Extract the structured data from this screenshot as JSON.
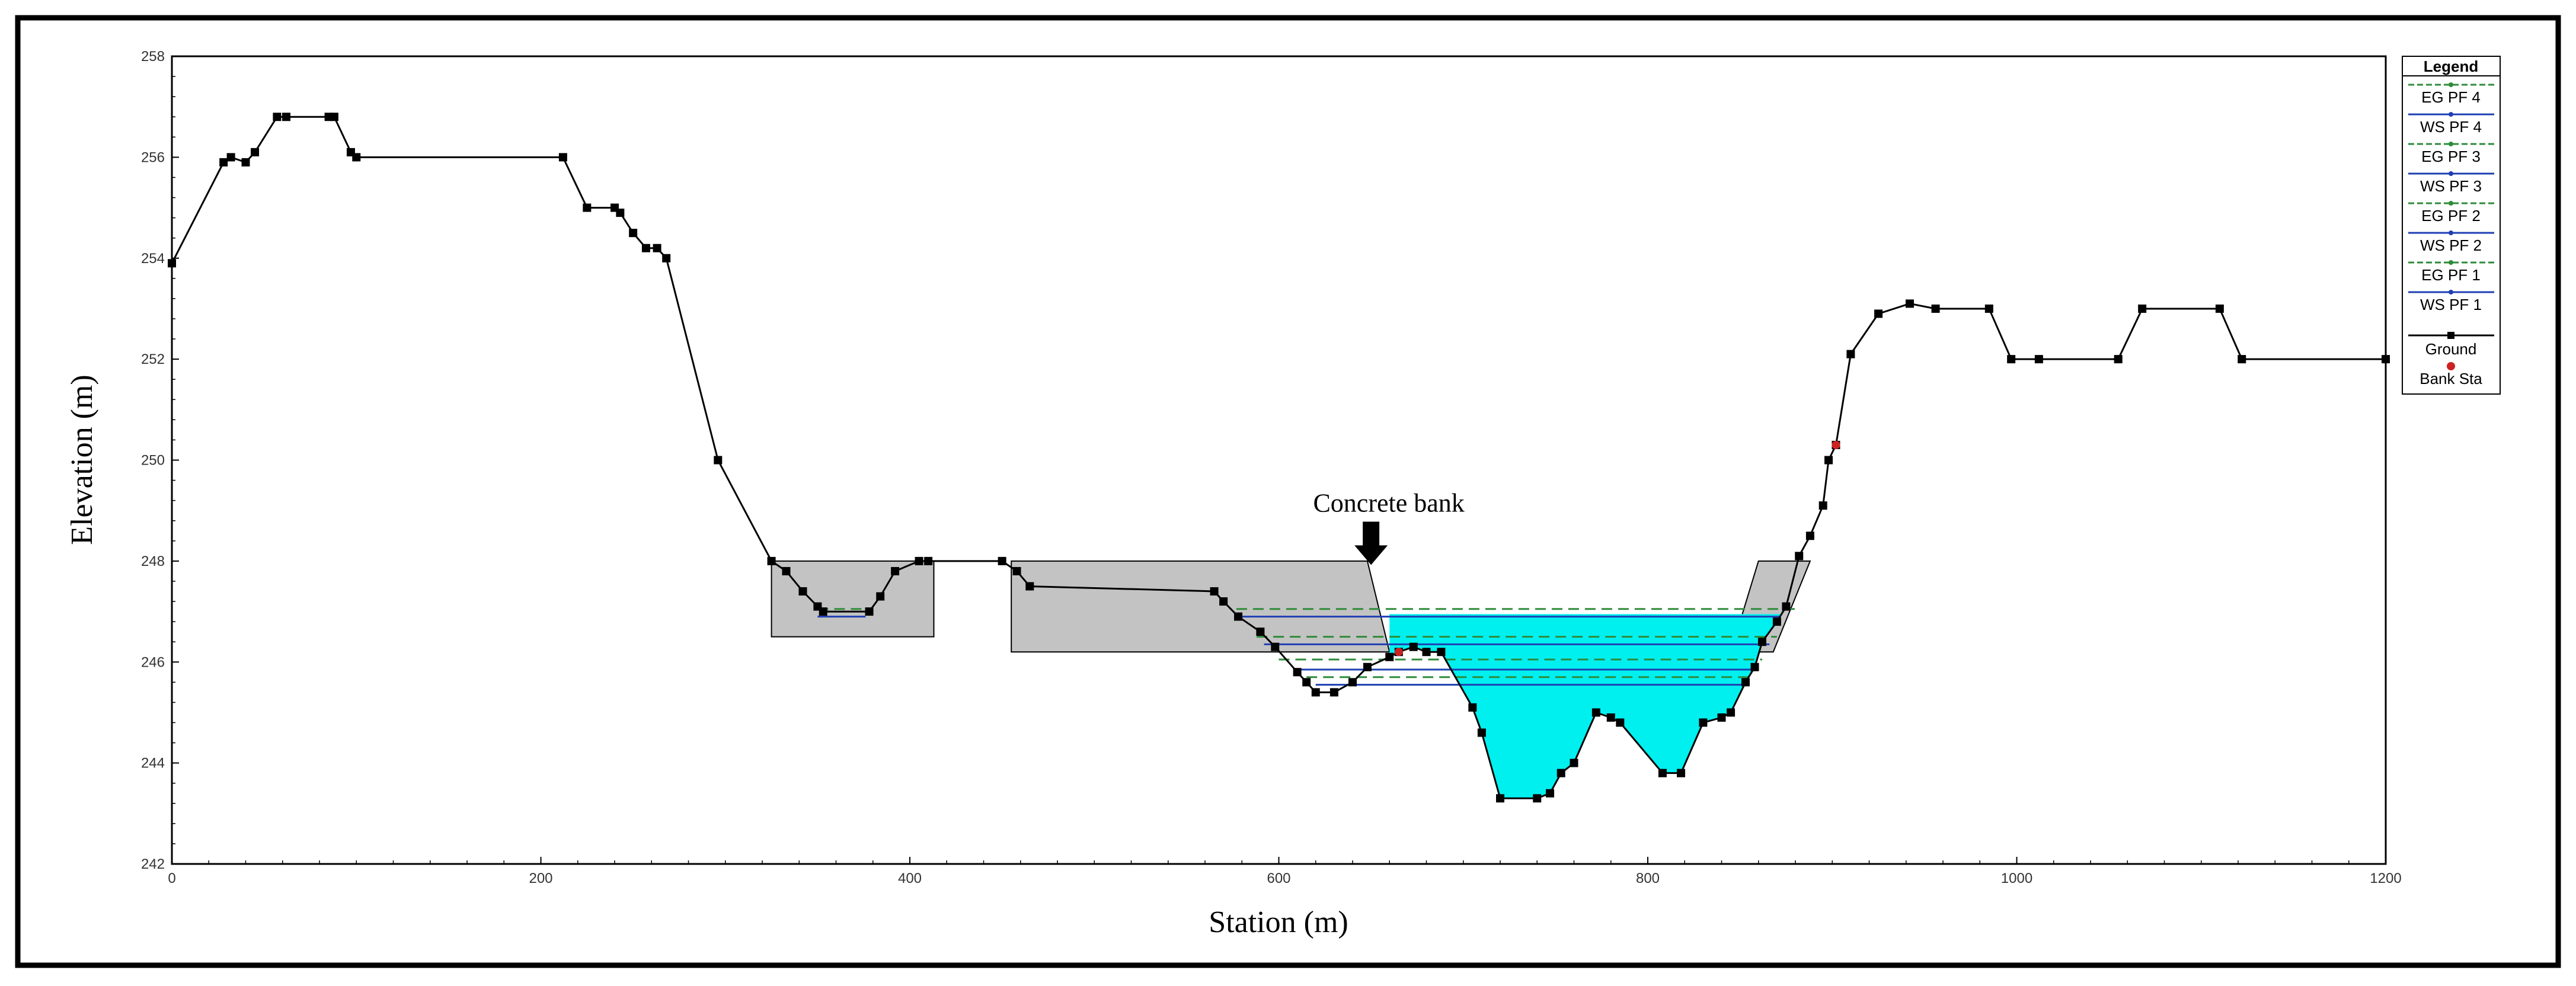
{
  "chart_data": {
    "type": "line",
    "xlabel": "Station (m)",
    "ylabel": "Elevation (m)",
    "xlim": [
      0,
      1200
    ],
    "ylim": [
      242,
      258
    ],
    "x_ticks": [
      0,
      200,
      400,
      600,
      800,
      1000,
      1200
    ],
    "y_ticks": [
      242,
      244,
      246,
      248,
      250,
      252,
      254,
      256,
      258
    ],
    "legend_title": "Legend",
    "legend_position": "right",
    "annotation": {
      "text": "Concrete bank",
      "x": 650,
      "y": 247.9
    },
    "ground": {
      "name": "Ground",
      "color": "#000000",
      "x": [
        0,
        28,
        32,
        40,
        45,
        57,
        62,
        85,
        88,
        97,
        100,
        212,
        225,
        240,
        243,
        250,
        257,
        263,
        268,
        296,
        325,
        333,
        342,
        350,
        353,
        378,
        384,
        392,
        405,
        410,
        450,
        458,
        465,
        565,
        570,
        578,
        590,
        598,
        610,
        615,
        620,
        630,
        640,
        648,
        660,
        665,
        673,
        680,
        688,
        705,
        710,
        720,
        740,
        747,
        753,
        760,
        772,
        780,
        785,
        808,
        818,
        830,
        840,
        845,
        853,
        858,
        862,
        870,
        875,
        882,
        888,
        895,
        898,
        902,
        910,
        925,
        942,
        956,
        985,
        997,
        1012,
        1055,
        1068,
        1110,
        1122,
        1200
      ],
      "y": [
        253.9,
        255.9,
        256,
        255.9,
        256.1,
        256.8,
        256.8,
        256.8,
        256.8,
        256.1,
        256,
        256,
        255,
        255,
        254.9,
        254.5,
        254.2,
        254.2,
        254,
        250,
        248,
        247.8,
        247.4,
        247.1,
        247,
        247,
        247.3,
        247.8,
        248,
        248,
        248,
        247.8,
        247.5,
        247.4,
        247.2,
        246.9,
        246.6,
        246.3,
        245.8,
        245.6,
        245.4,
        245.4,
        245.6,
        245.9,
        246.1,
        246.2,
        246.3,
        246.2,
        246.2,
        245.1,
        244.6,
        243.3,
        243.3,
        243.4,
        243.8,
        244,
        245,
        244.9,
        244.8,
        243.8,
        243.8,
        244.8,
        244.9,
        245,
        245.6,
        245.9,
        246.4,
        246.8,
        247.1,
        248.1,
        248.5,
        249.1,
        250,
        250.3,
        252.1,
        252.9,
        253.1,
        253,
        253,
        252,
        252,
        252,
        253,
        253,
        252,
        252
      ]
    },
    "ineffective_areas": [
      {
        "x": [
          325,
          413,
          413,
          325
        ],
        "y": [
          248,
          248,
          246.5,
          246.5
        ]
      },
      {
        "x": [
          455,
          648,
          660,
          455
        ],
        "y": [
          248,
          248,
          246.2,
          246.2
        ]
      },
      {
        "x": [
          860,
          888,
          868,
          845
        ],
        "y": [
          248,
          248,
          246.2,
          246.2
        ]
      }
    ],
    "series": [
      {
        "name": "EG PF 4",
        "color": "#2e8b3a",
        "dash": "18,10",
        "y": 247.05,
        "segments": [
          [
            350,
            376
          ],
          [
            577,
            880
          ]
        ]
      },
      {
        "name": "WS PF 4",
        "color": "#1f3fb3",
        "dash": "",
        "y": 246.9,
        "segments": [
          [
            350,
            376
          ],
          [
            580,
            872
          ]
        ]
      },
      {
        "name": "EG PF 3",
        "color": "#2e8b3a",
        "dash": "18,10",
        "y": 246.5,
        "segments": [
          [
            588,
            870
          ]
        ]
      },
      {
        "name": "WS PF 3",
        "color": "#1f3fb3",
        "dash": "",
        "y": 246.35,
        "segments": [
          [
            592,
            866
          ]
        ]
      },
      {
        "name": "EG PF 2",
        "color": "#2e8b3a",
        "dash": "18,10",
        "y": 246.05,
        "segments": [
          [
            600,
            862
          ]
        ]
      },
      {
        "name": "WS PF 2",
        "color": "#1f3fb3",
        "dash": "",
        "y": 245.85,
        "segments": [
          [
            610,
            858
          ]
        ]
      },
      {
        "name": "EG PF 1",
        "color": "#2e8b3a",
        "dash": "18,10",
        "y": 245.7,
        "segments": [
          [
            615,
            856
          ]
        ]
      },
      {
        "name": "WS PF 1",
        "color": "#1f3fb3",
        "dash": "",
        "y": 245.55,
        "segments": [
          [
            620,
            854
          ]
        ]
      }
    ],
    "water_fill": {
      "color": "#00f0f0",
      "y": 246.95,
      "x_start": 660,
      "x_end": 872
    },
    "bank_sta": {
      "name": "Bank Sta",
      "color": "#cc2222",
      "points": [
        {
          "x": 665,
          "y": 246.2
        },
        {
          "x": 902,
          "y": 250.3
        }
      ]
    },
    "legend_entries": [
      "EG PF 4",
      "WS PF 4",
      "EG PF 3",
      "WS PF 3",
      "EG PF 2",
      "WS PF 2",
      "EG PF 1",
      "WS PF 1",
      "Ground",
      "Bank Sta"
    ]
  }
}
